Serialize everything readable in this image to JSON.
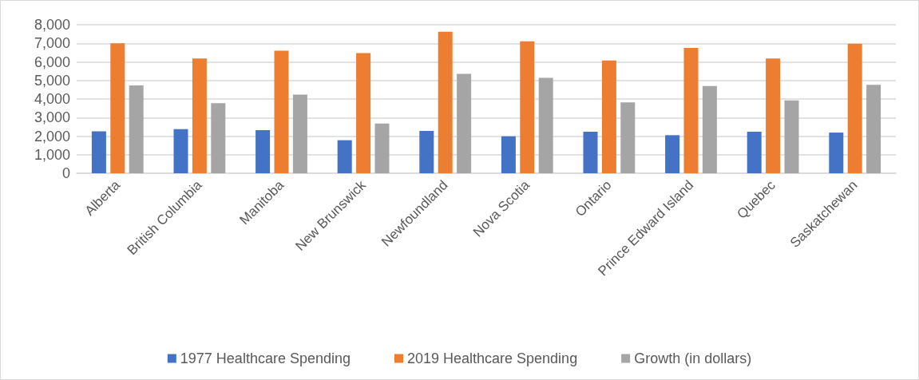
{
  "chart_data": {
    "type": "bar",
    "categories": [
      "Alberta",
      "British Columbia",
      "Manitoba",
      "New Brunswick",
      "Newfoundland",
      "Nova Scotia",
      "Ontario",
      "Prince Edward Island",
      "Quebec",
      "Saskatchewan"
    ],
    "series": [
      {
        "name": "1977 Healthcare Spending",
        "color": "#4472c4",
        "values": [
          2260,
          2380,
          2320,
          1780,
          2280,
          1990,
          2240,
          2050,
          2240,
          2190
        ]
      },
      {
        "name": "2019 Healthcare Spending",
        "color": "#ed7d31",
        "values": [
          7000,
          6180,
          6600,
          6470,
          7620,
          7110,
          6070,
          6750,
          6180,
          6980
        ]
      },
      {
        "name": "Growth (in dollars)",
        "color": "#a5a5a5",
        "values": [
          4730,
          3770,
          4240,
          2680,
          5360,
          5140,
          3820,
          4700,
          3930,
          4760
        ]
      }
    ],
    "ylim": [
      0,
      8000
    ],
    "yticks": [
      0,
      {
        "value": 1000,
        "label": "1,000"
      },
      {
        "value": 2000,
        "label": "2,000"
      },
      {
        "value": 3000,
        "label": "3,000"
      },
      {
        "value": 4000,
        "label": "4,000"
      },
      {
        "value": 5000,
        "label": "5,000"
      },
      {
        "value": 6000,
        "label": "6,000"
      },
      {
        "value": 7000,
        "label": "7,000"
      },
      {
        "value": 8000,
        "label": "8,000"
      }
    ],
    "grid": "y",
    "legend": "bottom"
  }
}
